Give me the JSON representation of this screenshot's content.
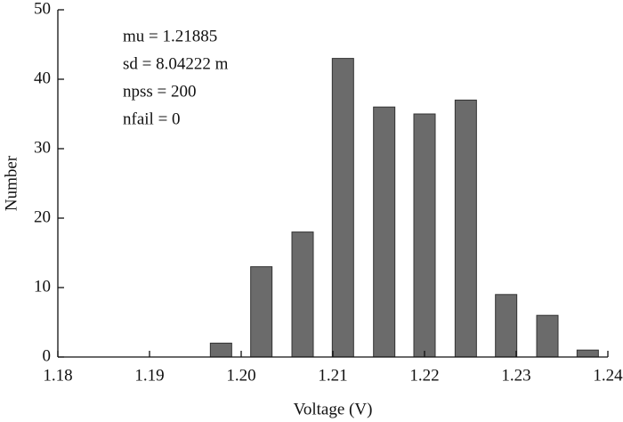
{
  "chart_data": {
    "type": "bar",
    "x_label": "Voltage (V)",
    "y_label": "Number",
    "annotations": [
      "mu = 1.21885",
      "sd = 8.04222 m",
      "npss = 200",
      "nfail = 0"
    ],
    "x": [
      1.1978,
      1.2022,
      1.2067,
      1.2111,
      1.2156,
      1.22,
      1.2245,
      1.2289,
      1.2334,
      1.2378
    ],
    "values": [
      2,
      13,
      18,
      43,
      36,
      35,
      37,
      9,
      6,
      1
    ],
    "color": "#6b6b6b",
    "xlim": [
      1.18,
      1.24
    ],
    "xticks": [
      1.18,
      1.19,
      {
        "value": 1.2,
        "label": "1.20"
      },
      1.21,
      1.22,
      1.23,
      1.24
    ],
    "ylim": [
      0,
      50
    ],
    "yticks": [
      0,
      10,
      20,
      30,
      40,
      50
    ],
    "grid": false
  }
}
